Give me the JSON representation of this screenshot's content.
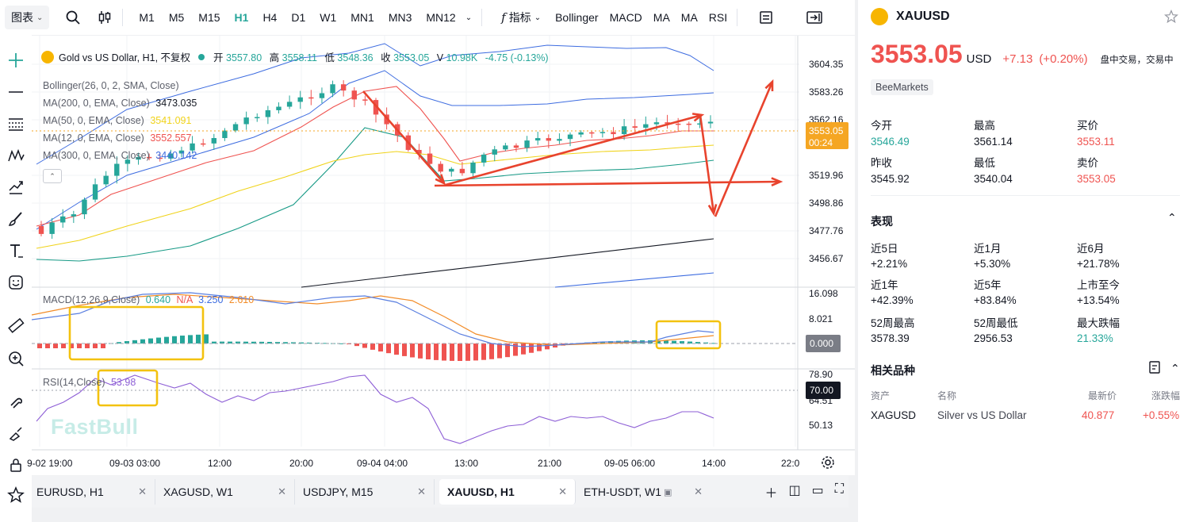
{
  "topbar": {
    "chart_menu": "图表",
    "timeframes": [
      "M1",
      "M5",
      "M15",
      "H1",
      "H4",
      "D1",
      "W1",
      "MN1",
      "MN3",
      "MN12"
    ],
    "active_timeframe": "H1",
    "indicators_label": "指标",
    "indicator_shortcuts": [
      "Bollinger",
      "MACD",
      "MA",
      "MA",
      "RSI"
    ]
  },
  "legend": {
    "symbol_title": "Gold vs US Dollar, H1, 不复权",
    "open_label": "开",
    "open": "3557.80",
    "high_label": "高",
    "high": "3558.11",
    "low_label": "低",
    "low": "3548.36",
    "close_label": "收",
    "close": "3553.05",
    "volume_label": "V",
    "volume": "10.98K",
    "change": "-4.75 (-0.13%)",
    "bollinger": "Bollinger(26, 0, 2, SMA, Close)",
    "ma200_label": "MA(200, 0, EMA, Close)",
    "ma200_value": "3473.035",
    "ma50_label": "MA(50, 0, EMA, Close)",
    "ma50_value": "3541.091",
    "ma12_label": "MA(12, 0, EMA, Close)",
    "ma12_value": "3552.557",
    "ma300_label": "MA(300, 0, EMA, Close)",
    "ma300_value": "3440.142",
    "macd_label": "MACD(12,26,9,Close)",
    "macd_v1": "0.640",
    "macd_v2": "N/A",
    "macd_v3": "3.250",
    "macd_v4": "2.610",
    "rsi_label": "RSI(14,Close)",
    "rsi_value": "53.98"
  },
  "price_axis": {
    "ticks": [
      "3604.35",
      "3583.26",
      "3562.16",
      "3519.96",
      "3498.86",
      "3477.76",
      "3456.67"
    ],
    "current_price": "3553.05",
    "countdown": "00:24",
    "macd_ticks": [
      "16.098",
      "8.021"
    ],
    "macd_zero": "0.000",
    "rsi_ticks": [
      "78.90",
      "64.51",
      "50.13"
    ],
    "rsi_level": "70.00"
  },
  "time_axis": [
    "9-02 19:00",
    "09-03 03:00",
    "12:00",
    "20:00",
    "09-04 04:00",
    "13:00",
    "21:00",
    "09-05 06:00",
    "14:00",
    "22:0"
  ],
  "watermark": "FastBull",
  "tabs": [
    {
      "label": "EURUSD, H1"
    },
    {
      "label": "XAGUSD, W1"
    },
    {
      "label": "USDJPY, M15"
    },
    {
      "label": "XAUUSD, H1"
    },
    {
      "label": "ETH-USDT, W1"
    }
  ],
  "active_tab": "XAUUSD, H1",
  "panel": {
    "symbol": "XAUUSD",
    "price": "3553.05",
    "currency": "USD",
    "change": "+7.13",
    "change_pct": "(+0.20%)",
    "status": "盘中交易，交易中",
    "broker": "BeeMarkets",
    "quote": [
      {
        "label": "今开",
        "value": "3546.49",
        "tone": "green"
      },
      {
        "label": "最高",
        "value": "3561.14",
        "tone": "plain"
      },
      {
        "label": "买价",
        "value": "3553.11",
        "tone": "red"
      },
      {
        "label": "昨收",
        "value": "3545.92",
        "tone": "plain"
      },
      {
        "label": "最低",
        "value": "3540.04",
        "tone": "plain"
      },
      {
        "label": "卖价",
        "value": "3553.05",
        "tone": "red"
      }
    ],
    "performance_title": "表现",
    "performance": [
      {
        "label": "近5日",
        "value": "+2.21%"
      },
      {
        "label": "近1月",
        "value": "+5.30%"
      },
      {
        "label": "近6月",
        "value": "+21.78%"
      },
      {
        "label": "近1年",
        "value": "+42.39%"
      },
      {
        "label": "近5年",
        "value": "+83.84%"
      },
      {
        "label": "上市至今",
        "value": "+13.54%"
      },
      {
        "label": "52周最高",
        "value": "3578.39"
      },
      {
        "label": "52周最低",
        "value": "2956.53"
      },
      {
        "label": "最大跌幅",
        "value": "21.33%"
      }
    ],
    "related_title": "相关品种",
    "related_headers": [
      "资产",
      "名称",
      "最新价",
      "涨跌幅"
    ],
    "related_rows": [
      {
        "asset": "XAGUSD",
        "name": "Silver vs US Dollar",
        "price": "40.877",
        "change": "+0.55%"
      }
    ]
  },
  "colors": {
    "up": "#26a69a",
    "down": "#ef5350",
    "price_label_bg": "#f5a623",
    "annotation_arrow": "#e8432d",
    "highlight_box": "#f3c20f"
  }
}
